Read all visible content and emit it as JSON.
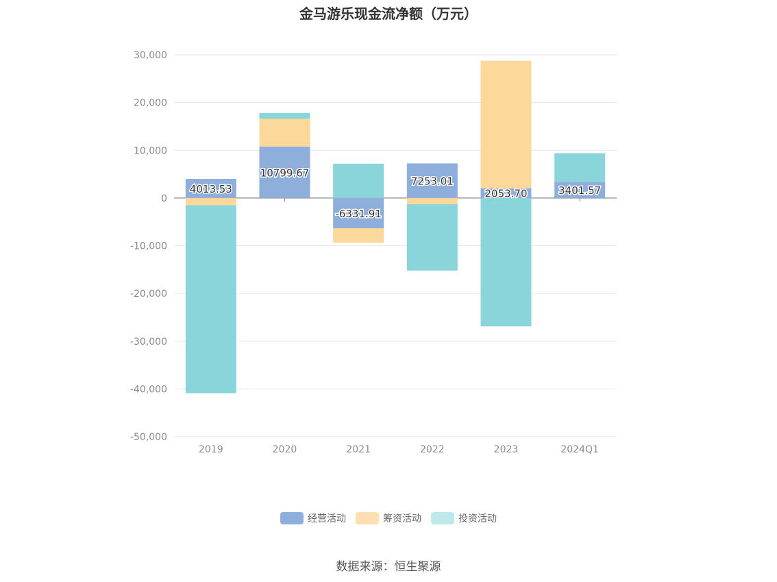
{
  "chart_data": {
    "type": "bar",
    "stacked": true,
    "title": "金马游乐现金流净额（万元）",
    "categories": [
      "2019",
      "2020",
      "2021",
      "2022",
      "2023",
      "2024Q1"
    ],
    "series": [
      {
        "name": "经营活动",
        "color": "#8eaedb",
        "values": [
          4013.53,
          10799.67,
          -6331.91,
          7253.01,
          2053.7,
          3401.57
        ],
        "labels": [
          "4013.53",
          "10799.67",
          "-6331.91",
          "7253.01",
          "2053.70",
          "3401.57"
        ]
      },
      {
        "name": "筹资活动",
        "color": "#fdd89b",
        "values": [
          -1500,
          5800,
          -3000,
          -1300,
          26700,
          0
        ]
      },
      {
        "name": "投资活动",
        "color": "#89d5da",
        "values": [
          -39400,
          1200,
          7200,
          -13900,
          -26900,
          6000
        ]
      }
    ],
    "y_ticks": [
      "30,000",
      "20,000",
      "10,000",
      "0",
      "-10,000",
      "-20,000",
      "-30,000",
      "-40,000",
      "-50,000"
    ],
    "ylim": [
      -50000,
      30000
    ],
    "grid": true,
    "legend_position": "bottom"
  },
  "legend": [
    {
      "label": "经营活动",
      "color": "#8eaedb"
    },
    {
      "label": "筹资活动",
      "color": "#fddfb2"
    },
    {
      "label": "投资活动",
      "color": "#bfe8eb"
    }
  ],
  "source": "数据来源：恒生聚源"
}
